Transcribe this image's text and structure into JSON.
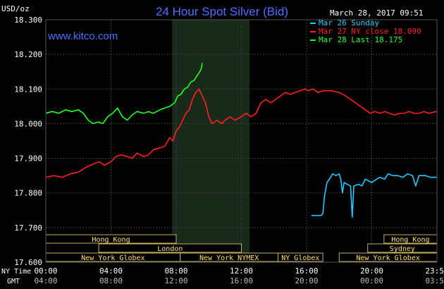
{
  "header": {
    "unit": "USD/oz",
    "title": "24 Hour Spot Silver (Bid)",
    "timestamp": "March 28, 2017 09:51",
    "site": "www.kitco.com"
  },
  "colors": {
    "background": "#000000",
    "grid": "#3a3a3a",
    "axis_text": "#ffffff",
    "title": "#4f6fff",
    "shade": "#1a2a1a",
    "session_bar": "#000000",
    "session_text": "#ffe070",
    "session_border": "#c8b060"
  },
  "legend": [
    {
      "label": "Mar 26 Sunday",
      "color": "#22c8ff"
    },
    {
      "label": "Mar 27 NY close 18.090",
      "color": "#ff2020"
    },
    {
      "label": "Mar 28 Last 18.175",
      "color": "#22ff22"
    }
  ],
  "sessions": [
    {
      "label": "Hong Kong",
      "row": 0,
      "start": 0,
      "end": 8
    },
    {
      "label": "Hong Kong",
      "row": 0,
      "start": 20.75,
      "end": 24
    },
    {
      "label": "London",
      "row": 1,
      "start": 3.25,
      "end": 12
    },
    {
      "label": "Sydney",
      "row": 1,
      "start": 19.75,
      "end": 24
    },
    {
      "label": "New York Globex",
      "row": 2,
      "start": 0,
      "end": 8.25
    },
    {
      "label": "New York NYMEX",
      "row": 2,
      "start": 8.25,
      "end": 14.25
    },
    {
      "label": "NY Globex",
      "row": 2,
      "start": 14.25,
      "end": 17
    },
    {
      "label": "New York Globex",
      "row": 2,
      "start": 18,
      "end": 24
    }
  ],
  "time_axis": {
    "ny_label": "NY Time",
    "gmt_label": "GMT",
    "ny_ticks": [
      "00:00",
      "04:00",
      "08:00",
      "12:00",
      "16:00",
      "20:00",
      "23:59"
    ],
    "gmt_ticks": [
      "04:00",
      "08:00",
      "12:00",
      "16:00",
      "20:00",
      "00:00",
      "03:59"
    ]
  },
  "chart_data": {
    "type": "line",
    "title": "24 Hour Spot Silver (Bid)",
    "ylabel": "USD/oz",
    "y_ticks": [
      "18.300",
      "18.200",
      "18.100",
      "18.000",
      "17.900",
      "17.800",
      "17.700",
      "17.600"
    ],
    "ylim": [
      17.6,
      18.3
    ],
    "xlim": [
      0,
      24
    ],
    "shaded_region": [
      7.75,
      12.5
    ],
    "series": [
      {
        "name": "Mar 26 Sunday",
        "color": "#22c8ff",
        "points": [
          [
            16.3,
            17.735
          ],
          [
            16.9,
            17.735
          ],
          [
            17.0,
            17.74
          ],
          [
            17.1,
            17.79
          ],
          [
            17.25,
            17.83
          ],
          [
            17.4,
            17.84
          ],
          [
            17.6,
            17.855
          ],
          [
            17.8,
            17.85
          ],
          [
            18.0,
            17.855
          ],
          [
            18.1,
            17.84
          ],
          [
            18.2,
            17.8
          ],
          [
            18.3,
            17.83
          ],
          [
            18.5,
            17.825
          ],
          [
            18.7,
            17.82
          ],
          [
            18.8,
            17.73
          ],
          [
            18.9,
            17.82
          ],
          [
            19.2,
            17.825
          ],
          [
            19.4,
            17.82
          ],
          [
            19.6,
            17.84
          ],
          [
            19.8,
            17.835
          ],
          [
            20.0,
            17.83
          ],
          [
            20.3,
            17.84
          ],
          [
            20.5,
            17.845
          ],
          [
            20.8,
            17.84
          ],
          [
            21.0,
            17.855
          ],
          [
            21.3,
            17.85
          ],
          [
            21.6,
            17.85
          ],
          [
            21.9,
            17.845
          ],
          [
            22.2,
            17.855
          ],
          [
            22.5,
            17.85
          ],
          [
            22.7,
            17.82
          ],
          [
            22.9,
            17.85
          ],
          [
            23.3,
            17.85
          ],
          [
            23.6,
            17.845
          ],
          [
            23.98,
            17.845
          ]
        ]
      },
      {
        "name": "Mar 27 NY close 18.090",
        "color": "#ff2020",
        "points": [
          [
            0,
            17.845
          ],
          [
            0.5,
            17.85
          ],
          [
            1.0,
            17.845
          ],
          [
            1.5,
            17.855
          ],
          [
            2.0,
            17.86
          ],
          [
            2.5,
            17.875
          ],
          [
            3.0,
            17.885
          ],
          [
            3.3,
            17.89
          ],
          [
            3.6,
            17.88
          ],
          [
            4.0,
            17.89
          ],
          [
            4.3,
            17.905
          ],
          [
            4.6,
            17.91
          ],
          [
            5.0,
            17.905
          ],
          [
            5.3,
            17.9
          ],
          [
            5.6,
            17.915
          ],
          [
            6.0,
            17.905
          ],
          [
            6.3,
            17.91
          ],
          [
            6.6,
            17.925
          ],
          [
            7.0,
            17.93
          ],
          [
            7.3,
            17.935
          ],
          [
            7.6,
            17.96
          ],
          [
            7.8,
            17.95
          ],
          [
            8.0,
            17.98
          ],
          [
            8.2,
            17.99
          ],
          [
            8.4,
            18.01
          ],
          [
            8.6,
            18.03
          ],
          [
            8.8,
            18.04
          ],
          [
            9.0,
            18.07
          ],
          [
            9.2,
            18.09
          ],
          [
            9.4,
            18.1
          ],
          [
            9.6,
            18.08
          ],
          [
            9.8,
            18.06
          ],
          [
            10.0,
            18.02
          ],
          [
            10.2,
            18.0
          ],
          [
            10.5,
            18.01
          ],
          [
            10.8,
            18.0
          ],
          [
            11.0,
            18.01
          ],
          [
            11.3,
            18.02
          ],
          [
            11.6,
            18.01
          ],
          [
            12.0,
            18.02
          ],
          [
            12.3,
            18.03
          ],
          [
            12.6,
            18.02
          ],
          [
            12.9,
            18.03
          ],
          [
            13.2,
            18.06
          ],
          [
            13.5,
            18.07
          ],
          [
            13.8,
            18.06
          ],
          [
            14.1,
            18.07
          ],
          [
            14.4,
            18.08
          ],
          [
            14.7,
            18.09
          ],
          [
            15.0,
            18.085
          ],
          [
            15.3,
            18.09
          ],
          [
            15.6,
            18.095
          ],
          [
            15.9,
            18.1
          ],
          [
            16.1,
            18.095
          ],
          [
            16.4,
            18.1
          ],
          [
            16.7,
            18.09
          ],
          [
            17.0,
            18.095
          ],
          [
            17.5,
            18.095
          ],
          [
            18.0,
            18.09
          ],
          [
            18.4,
            18.08
          ],
          [
            18.7,
            18.07
          ],
          [
            19.0,
            18.06
          ],
          [
            19.3,
            18.05
          ],
          [
            19.6,
            18.04
          ],
          [
            19.9,
            18.03
          ],
          [
            20.2,
            18.035
          ],
          [
            20.5,
            18.03
          ],
          [
            20.8,
            18.035
          ],
          [
            21.1,
            18.03
          ],
          [
            21.4,
            18.025
          ],
          [
            21.7,
            18.03
          ],
          [
            22.0,
            18.03
          ],
          [
            22.3,
            18.035
          ],
          [
            22.6,
            18.03
          ],
          [
            22.9,
            18.03
          ],
          [
            23.2,
            18.035
          ],
          [
            23.5,
            18.03
          ],
          [
            23.98,
            18.035
          ]
        ]
      },
      {
        "name": "Mar 28 Last 18.175",
        "color": "#22ff22",
        "points": [
          [
            0,
            18.03
          ],
          [
            0.4,
            18.035
          ],
          [
            0.8,
            18.03
          ],
          [
            1.2,
            18.04
          ],
          [
            1.6,
            18.035
          ],
          [
            2.0,
            18.04
          ],
          [
            2.3,
            18.03
          ],
          [
            2.6,
            18.01
          ],
          [
            2.9,
            18.0
          ],
          [
            3.2,
            18.005
          ],
          [
            3.5,
            18.0
          ],
          [
            3.8,
            18.02
          ],
          [
            4.1,
            18.03
          ],
          [
            4.4,
            18.045
          ],
          [
            4.7,
            18.02
          ],
          [
            5.0,
            18.01
          ],
          [
            5.3,
            18.025
          ],
          [
            5.6,
            18.035
          ],
          [
            6.0,
            18.03
          ],
          [
            6.3,
            18.035
          ],
          [
            6.6,
            18.03
          ],
          [
            7.0,
            18.04
          ],
          [
            7.3,
            18.045
          ],
          [
            7.6,
            18.05
          ],
          [
            7.9,
            18.06
          ],
          [
            8.1,
            18.08
          ],
          [
            8.3,
            18.085
          ],
          [
            8.5,
            18.1
          ],
          [
            8.7,
            18.105
          ],
          [
            8.9,
            18.12
          ],
          [
            9.1,
            18.125
          ],
          [
            9.3,
            18.14
          ],
          [
            9.45,
            18.15
          ],
          [
            9.55,
            18.16
          ],
          [
            9.6,
            18.175
          ]
        ]
      }
    ]
  }
}
